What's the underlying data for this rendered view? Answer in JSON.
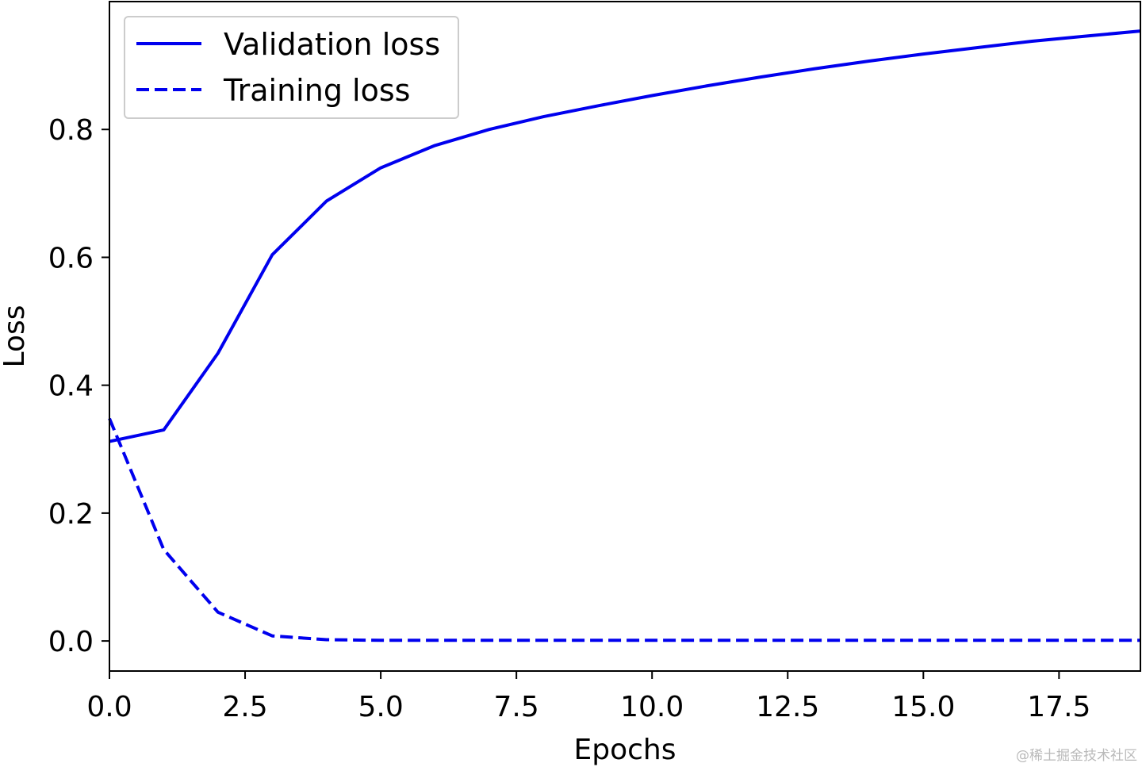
{
  "chart_data": {
    "type": "line",
    "title": "",
    "xlabel": "Epochs",
    "ylabel": "Loss",
    "xlim": [
      0,
      19
    ],
    "ylim": [
      -0.047,
      1.0
    ],
    "xticks": [
      0.0,
      2.5,
      5.0,
      7.5,
      10.0,
      12.5,
      15.0,
      17.5
    ],
    "xtick_labels": [
      "0.0",
      "2.5",
      "5.0",
      "7.5",
      "10.0",
      "12.5",
      "15.0",
      "17.5"
    ],
    "yticks": [
      0.0,
      0.2,
      0.4,
      0.6,
      0.8
    ],
    "ytick_labels": [
      "0.0",
      "0.2",
      "0.4",
      "0.6",
      "0.8"
    ],
    "grid": false,
    "legend_position": "top-left",
    "series": [
      {
        "name": "Validation loss",
        "style": "solid",
        "color": "#0000ee",
        "x": [
          0,
          1,
          2,
          3,
          4,
          5,
          6,
          7,
          8,
          9,
          10,
          11,
          12,
          13,
          14,
          15,
          16,
          17,
          18,
          19
        ],
        "y": [
          0.312,
          0.33,
          0.45,
          0.604,
          0.688,
          0.74,
          0.775,
          0.8,
          0.82,
          0.837,
          0.853,
          0.868,
          0.882,
          0.895,
          0.907,
          0.918,
          0.928,
          0.938,
          0.946,
          0.954
        ]
      },
      {
        "name": "Training loss",
        "style": "dashed",
        "color": "#0000ee",
        "x": [
          0,
          1,
          2,
          3,
          4,
          5,
          6,
          7,
          8,
          9,
          10,
          11,
          12,
          13,
          14,
          15,
          16,
          17,
          18,
          19
        ],
        "y": [
          0.348,
          0.143,
          0.045,
          0.008,
          0.002,
          0.001,
          0.001,
          0.001,
          0.001,
          0.001,
          0.001,
          0.001,
          0.001,
          0.001,
          0.001,
          0.001,
          0.001,
          0.001,
          0.001,
          0.001
        ]
      }
    ]
  },
  "watermark": "@稀土掘金技术社区"
}
